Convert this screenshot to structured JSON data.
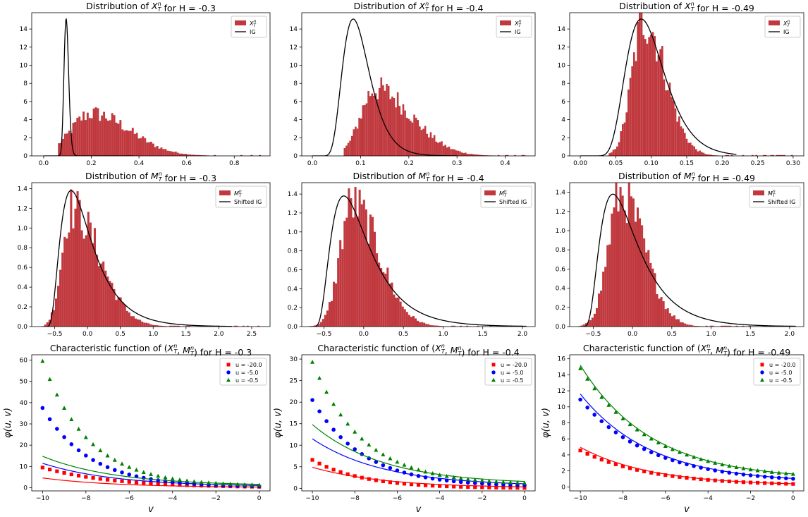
{
  "figure": {
    "background": "#ffffff"
  },
  "colors": {
    "hist": "#c0393e",
    "curve": "#000000",
    "red": "#ff0000",
    "blue": "#0000ff",
    "green": "#008000"
  },
  "chart_data": [
    {
      "type": "histogram",
      "row": 0,
      "col": 0,
      "title": "Distribution of X_T^n for H = -0.3",
      "xlim": [
        -0.05,
        0.95
      ],
      "ylim": [
        0,
        15.8
      ],
      "xticks": [
        0.0,
        0.2,
        0.4,
        0.6,
        0.8
      ],
      "xtick_labels": [
        "0.0",
        "0.2",
        "0.4",
        "0.6",
        "0.8"
      ],
      "yticks": [
        0,
        2,
        4,
        6,
        8,
        10,
        12,
        14
      ],
      "ytick_labels": [
        "0",
        "2",
        "4",
        "6",
        "8",
        "10",
        "12",
        "14"
      ],
      "legend": [
        "X_T^n",
        "IG"
      ],
      "legend_position": "upper right",
      "hist_shape": {
        "start": 0.06,
        "end": 0.92,
        "bins": 100,
        "mode": 0.2,
        "peak": 4.7,
        "sl": 0.085,
        "sr": 0.16
      },
      "curve": {
        "kind": "IG",
        "mean": 0.096,
        "shape": 8.8,
        "x0": 0.0,
        "x1": 0.38
      }
    },
    {
      "type": "histogram",
      "row": 0,
      "col": 1,
      "title": "Distribution of X_T^n for H = -0.4",
      "xlim": [
        -0.022,
        0.462
      ],
      "ylim": [
        0,
        15.8
      ],
      "xticks": [
        0.0,
        0.1,
        0.2,
        0.3,
        0.4
      ],
      "xtick_labels": [
        "0.0",
        "0.1",
        "0.2",
        "0.3",
        "0.4"
      ],
      "yticks": [
        0,
        2,
        4,
        6,
        8,
        10,
        12,
        14
      ],
      "ytick_labels": [
        "0",
        "2",
        "4",
        "6",
        "8",
        "10",
        "12",
        "14"
      ],
      "legend": [
        "X_T^n",
        "IG"
      ],
      "legend_position": "upper right",
      "hist_shape": {
        "start": 0.065,
        "end": 0.445,
        "bins": 100,
        "mode": 0.13,
        "peak": 7.4,
        "sl": 0.03,
        "sr": 0.075
      },
      "curve": {
        "kind": "IG",
        "mean": 0.1,
        "shape": 0.9,
        "x0": 0.0,
        "x1": 0.3
      }
    },
    {
      "type": "histogram",
      "row": 0,
      "col": 2,
      "title": "Distribution of X_T^n for H = -0.49",
      "xlim": [
        -0.015,
        0.315
      ],
      "ylim": [
        0,
        15.8
      ],
      "xticks": [
        0.0,
        0.05,
        0.1,
        0.15,
        0.2,
        0.25,
        0.3
      ],
      "xtick_labels": [
        "0.00",
        "0.05",
        "0.10",
        "0.15",
        "0.20",
        "0.25",
        "0.30"
      ],
      "yticks": [
        0,
        2,
        4,
        6,
        8,
        10,
        12,
        14
      ],
      "ytick_labels": [
        "0",
        "2",
        "4",
        "6",
        "8",
        "10",
        "12",
        "14"
      ],
      "legend": [
        "X_T^n",
        "IG"
      ],
      "legend_position": "upper right",
      "hist_shape": {
        "start": 0.04,
        "end": 0.305,
        "bins": 100,
        "mode": 0.09,
        "peak": 15.0,
        "sl": 0.017,
        "sr": 0.03
      },
      "curve": {
        "kind": "IG",
        "mean": 0.1,
        "shape": 0.98,
        "x0": 0.0,
        "x1": 0.22
      }
    },
    {
      "type": "histogram",
      "row": 1,
      "col": 0,
      "title": "Distribution of M_T^n for H = -0.3",
      "xlim": [
        -0.85,
        2.78
      ],
      "ylim": [
        0,
        1.46
      ],
      "xticks": [
        -0.5,
        0.0,
        0.5,
        1.0,
        1.5,
        2.0,
        2.5
      ],
      "xtick_labels": [
        "−0.5",
        "0.0",
        "0.5",
        "1.0",
        "1.5",
        "2.0",
        "2.5"
      ],
      "yticks": [
        0.0,
        0.2,
        0.4,
        0.6,
        0.8,
        1.0,
        1.2,
        1.4
      ],
      "ytick_labels": [
        "0.0",
        "0.2",
        "0.4",
        "0.6",
        "0.8",
        "1.0",
        "1.2",
        "1.4"
      ],
      "legend": [
        "M_T^n",
        "Shifted IG"
      ],
      "legend_position": "upper right",
      "hist_shape": {
        "start": -0.66,
        "end": 2.62,
        "bins": 100,
        "mode": -0.25,
        "peak": 1.2,
        "sl": 0.14,
        "sr": 0.43
      },
      "curve": {
        "kind": "ShiftedIG",
        "shift": -0.7,
        "mean": 0.7,
        "shape": 2.3,
        "x0": -0.69,
        "x1": 2.2
      }
    },
    {
      "type": "histogram",
      "row": 1,
      "col": 1,
      "title": "Distribution of M_T^n for H = -0.4",
      "xlim": [
        -0.78,
        2.16
      ],
      "ylim": [
        0,
        1.52
      ],
      "xticks": [
        -0.5,
        0.0,
        0.5,
        1.0,
        1.5,
        2.0
      ],
      "xtick_labels": [
        "−0.5",
        "0.0",
        "0.5",
        "1.0",
        "1.5",
        "2.0"
      ],
      "yticks": [
        0.0,
        0.2,
        0.4,
        0.6,
        0.8,
        1.0,
        1.2,
        1.4
      ],
      "ytick_labels": [
        "0.0",
        "0.2",
        "0.4",
        "0.6",
        "0.8",
        "1.0",
        "1.2",
        "1.4"
      ],
      "legend": [
        "M_T^n",
        "Shifted IG"
      ],
      "legend_position": "upper right",
      "hist_shape": {
        "start": -0.66,
        "end": 2.05,
        "bins": 100,
        "mode": -0.15,
        "peak": 1.3,
        "sl": 0.15,
        "sr": 0.34
      },
      "curve": {
        "kind": "ShiftedIG",
        "shift": -0.7,
        "mean": 0.7,
        "shape": 2.3,
        "x0": -0.69,
        "x1": 2.05
      }
    },
    {
      "type": "histogram",
      "row": 1,
      "col": 2,
      "title": "Distribution of M_T^n for H = -0.49",
      "xlim": [
        -0.8,
        2.18
      ],
      "ylim": [
        0,
        1.5
      ],
      "xticks": [
        -0.5,
        0.0,
        0.5,
        1.0,
        1.5,
        2.0
      ],
      "xtick_labels": [
        "−0.5",
        "0.0",
        "0.5",
        "1.0",
        "1.5",
        "2.0"
      ],
      "yticks": [
        0.0,
        0.2,
        0.4,
        0.6,
        0.8,
        1.0,
        1.2,
        1.4
      ],
      "ytick_labels": [
        "0.0",
        "0.2",
        "0.4",
        "0.6",
        "0.8",
        "1.0",
        "1.2",
        "1.4"
      ],
      "legend": [
        "M_T^n",
        "Shifted IG"
      ],
      "legend_position": "upper right",
      "hist_shape": {
        "start": -0.66,
        "end": 2.08,
        "bins": 100,
        "mode": -0.15,
        "peak": 1.38,
        "sl": 0.16,
        "sr": 0.3
      },
      "curve": {
        "kind": "ShiftedIG",
        "shift": -0.7,
        "mean": 0.7,
        "shape": 2.3,
        "x0": -0.69,
        "x1": 2.08
      }
    },
    {
      "type": "scatter+line",
      "row": 2,
      "col": 0,
      "title": "Characteristic function of (X_T^n, M_T^n) for H = -0.3",
      "xlabel": "v",
      "ylabel": "φ(u, v)",
      "xlim": [
        -10.5,
        0.5
      ],
      "ylim": [
        -1.5,
        62.5
      ],
      "xticks": [
        -10,
        -8,
        -6,
        -4,
        -2,
        0
      ],
      "xtick_labels": [
        "−10",
        "−8",
        "−6",
        "−4",
        "−2",
        "0"
      ],
      "yticks": [
        0,
        10,
        20,
        30,
        40,
        50,
        60
      ],
      "ytick_labels": [
        "0",
        "10",
        "20",
        "30",
        "40",
        "50",
        "60"
      ],
      "legend_position": "upper right",
      "series": [
        {
          "name": "u = -20.0",
          "marker": "square",
          "color": "#ff0000",
          "points": {
            "a": 9.5,
            "b": 0.31,
            "c": 0.0
          },
          "line": {
            "a": 4.6,
            "b": 0.3,
            "c": 0.1
          }
        },
        {
          "name": "u = -5.0",
          "marker": "circle",
          "color": "#0000ff",
          "points": {
            "a": 37.5,
            "b": 0.46,
            "c": 0.3
          },
          "line": {
            "a": 11.5,
            "b": 0.3,
            "c": 0.5
          }
        },
        {
          "name": "u = -0.5",
          "marker": "triangle",
          "color": "#008000",
          "points": {
            "a": 59.5,
            "b": 0.47,
            "c": 0.7
          },
          "line": {
            "a": 14.8,
            "b": 0.3,
            "c": 0.9
          }
        }
      ]
    },
    {
      "type": "scatter+line",
      "row": 2,
      "col": 1,
      "title": "Characteristic function of (X_T^n, M_T^n) for H = -0.4",
      "xlabel": "v",
      "ylabel": "φ(u, v)",
      "xlim": [
        -10.5,
        0.5
      ],
      "ylim": [
        -0.6,
        31.0
      ],
      "xticks": [
        -10,
        -8,
        -6,
        -4,
        -2,
        0
      ],
      "xtick_labels": [
        "−10",
        "−8",
        "−6",
        "−4",
        "−2",
        "0"
      ],
      "yticks": [
        0,
        5,
        10,
        15,
        20,
        25,
        30
      ],
      "ytick_labels": [
        "0",
        "5",
        "10",
        "15",
        "20",
        "25",
        "30"
      ],
      "legend_position": "upper right",
      "series": [
        {
          "name": "u = -20.0",
          "marker": "square",
          "color": "#ff0000",
          "points": {
            "a": 6.6,
            "b": 0.42,
            "c": 0.0
          },
          "line": {
            "a": 4.9,
            "b": 0.3,
            "c": 0.1
          }
        },
        {
          "name": "u = -5.0",
          "marker": "circle",
          "color": "#0000ff",
          "points": {
            "a": 20.5,
            "b": 0.42,
            "c": 0.4
          },
          "line": {
            "a": 11.5,
            "b": 0.3,
            "c": 0.5
          }
        },
        {
          "name": "u = -0.5",
          "marker": "triangle",
          "color": "#008000",
          "points": {
            "a": 29.3,
            "b": 0.42,
            "c": 0.8
          },
          "line": {
            "a": 14.8,
            "b": 0.3,
            "c": 0.9
          }
        }
      ]
    },
    {
      "type": "scatter+line",
      "row": 2,
      "col": 2,
      "title": "Characteristic function of (X_T^n, M_T^n) for H = -0.49",
      "xlabel": "v",
      "ylabel": "φ(u, v)",
      "xlim": [
        -10.5,
        0.5
      ],
      "ylim": [
        -0.5,
        16.5
      ],
      "xticks": [
        -10,
        -8,
        -6,
        -4,
        -2,
        0
      ],
      "xtick_labels": [
        "−10",
        "−8",
        "−6",
        "−4",
        "−2",
        "0"
      ],
      "yticks": [
        0,
        2,
        4,
        6,
        8,
        10,
        12,
        14,
        16
      ],
      "ytick_labels": [
        "0",
        "2",
        "4",
        "6",
        "8",
        "10",
        "12",
        "14",
        "16"
      ],
      "legend_position": "upper right",
      "series": [
        {
          "name": "u = -20.0",
          "marker": "square",
          "color": "#ff0000",
          "points": {
            "a": 4.55,
            "b": 0.3,
            "c": 0.15
          },
          "line": {
            "a": 4.95,
            "b": 0.3,
            "c": 0.15
          }
        },
        {
          "name": "u = -5.0",
          "marker": "circle",
          "color": "#0000ff",
          "points": {
            "a": 10.9,
            "b": 0.3,
            "c": 0.5
          },
          "line": {
            "a": 11.6,
            "b": 0.3,
            "c": 0.5
          }
        },
        {
          "name": "u = -0.5",
          "marker": "triangle",
          "color": "#008000",
          "points": {
            "a": 14.8,
            "b": 0.3,
            "c": 0.9
          },
          "line": {
            "a": 15.2,
            "b": 0.3,
            "c": 0.9
          }
        }
      ]
    }
  ]
}
